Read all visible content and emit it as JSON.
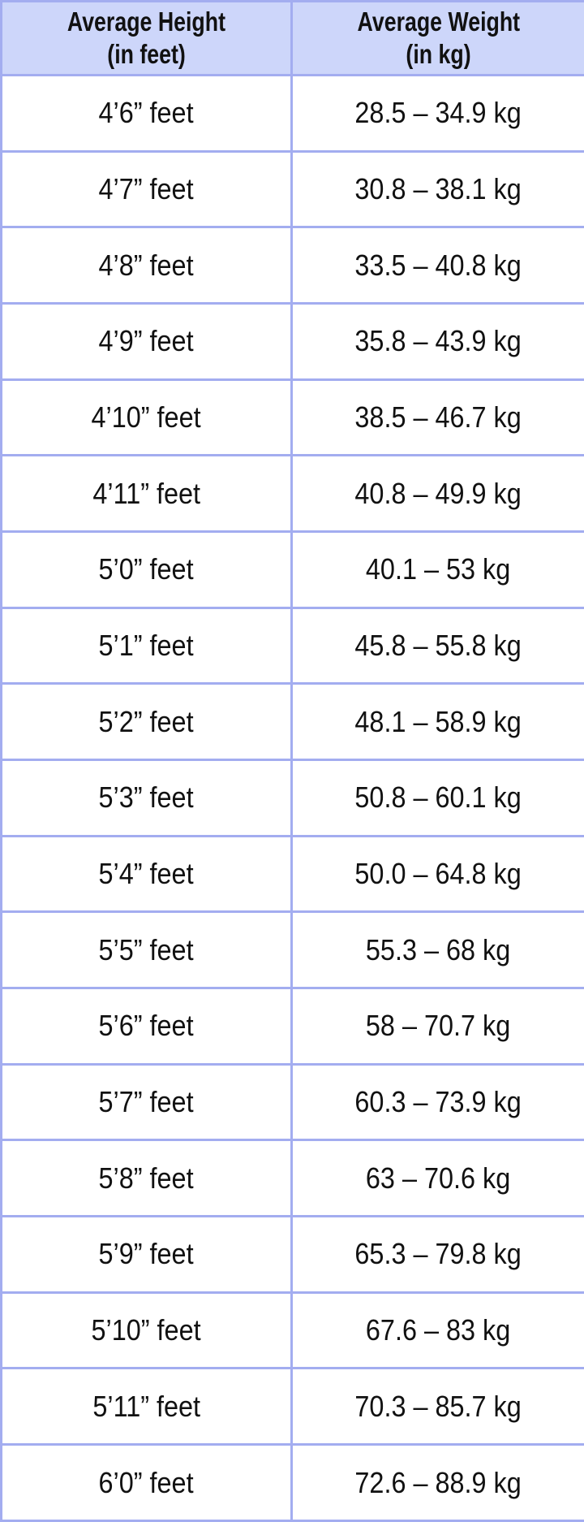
{
  "table": {
    "headers": [
      {
        "line1": "Average Height",
        "line2": "(in feet)"
      },
      {
        "line1": "Average Weight",
        "line2": "(in kg)"
      }
    ],
    "rows": [
      {
        "height": "4’6” feet",
        "weight": "28.5 – 34.9 kg"
      },
      {
        "height": "4’7” feet",
        "weight": "30.8 – 38.1 kg"
      },
      {
        "height": "4’8” feet",
        "weight": "33.5 – 40.8 kg"
      },
      {
        "height": "4’9” feet",
        "weight": "35.8 – 43.9 kg"
      },
      {
        "height": "4’10” feet",
        "weight": "38.5 – 46.7 kg"
      },
      {
        "height": "4’11” feet",
        "weight": "40.8 – 49.9 kg"
      },
      {
        "height": "5’0” feet",
        "weight": "40.1 – 53 kg"
      },
      {
        "height": "5’1” feet",
        "weight": "45.8 – 55.8 kg"
      },
      {
        "height": "5’2” feet",
        "weight": "48.1 – 58.9 kg"
      },
      {
        "height": "5’3” feet",
        "weight": "50.8 – 60.1 kg"
      },
      {
        "height": "5’4” feet",
        "weight": "50.0 – 64.8 kg"
      },
      {
        "height": "5’5” feet",
        "weight": "55.3 – 68 kg"
      },
      {
        "height": "5’6” feet",
        "weight": "58 – 70.7 kg"
      },
      {
        "height": "5’7” feet",
        "weight": "60.3 – 73.9 kg"
      },
      {
        "height": "5’8” feet",
        "weight": "63 – 70.6 kg"
      },
      {
        "height": "5’9” feet",
        "weight": "65.3 – 79.8 kg"
      },
      {
        "height": "5’10” feet",
        "weight": "67.6 – 83 kg"
      },
      {
        "height": "5’11” feet",
        "weight": "70.3 – 85.7 kg"
      },
      {
        "height": "6’0” feet",
        "weight": "72.6 – 88.9 kg"
      }
    ]
  },
  "colors": {
    "header_bg": "#cdd6fa",
    "border": "#a3adf0"
  }
}
